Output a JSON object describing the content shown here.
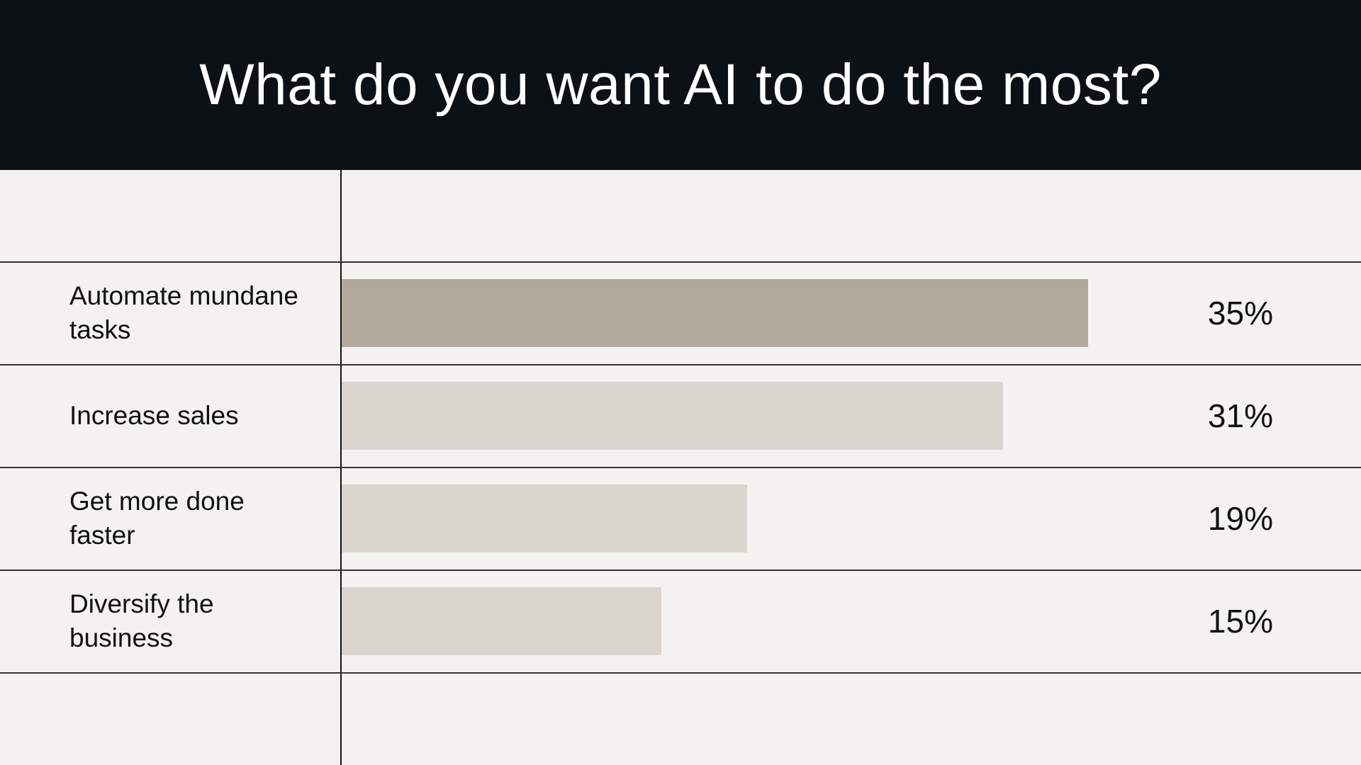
{
  "chart_data": {
    "type": "bar",
    "orientation": "horizontal",
    "title": "What do you want AI to do the most?",
    "categories": [
      "Automate mundane tasks",
      "Increase sales",
      "Get more done faster",
      "Diversify the business"
    ],
    "values": [
      35,
      31,
      19,
      15
    ],
    "value_labels": [
      "35%",
      "31%",
      "19%",
      "15%"
    ],
    "colors": [
      "#b3a89c",
      "#d9d4ce",
      "#d9d4ce",
      "#d9d4ce"
    ]
  }
}
